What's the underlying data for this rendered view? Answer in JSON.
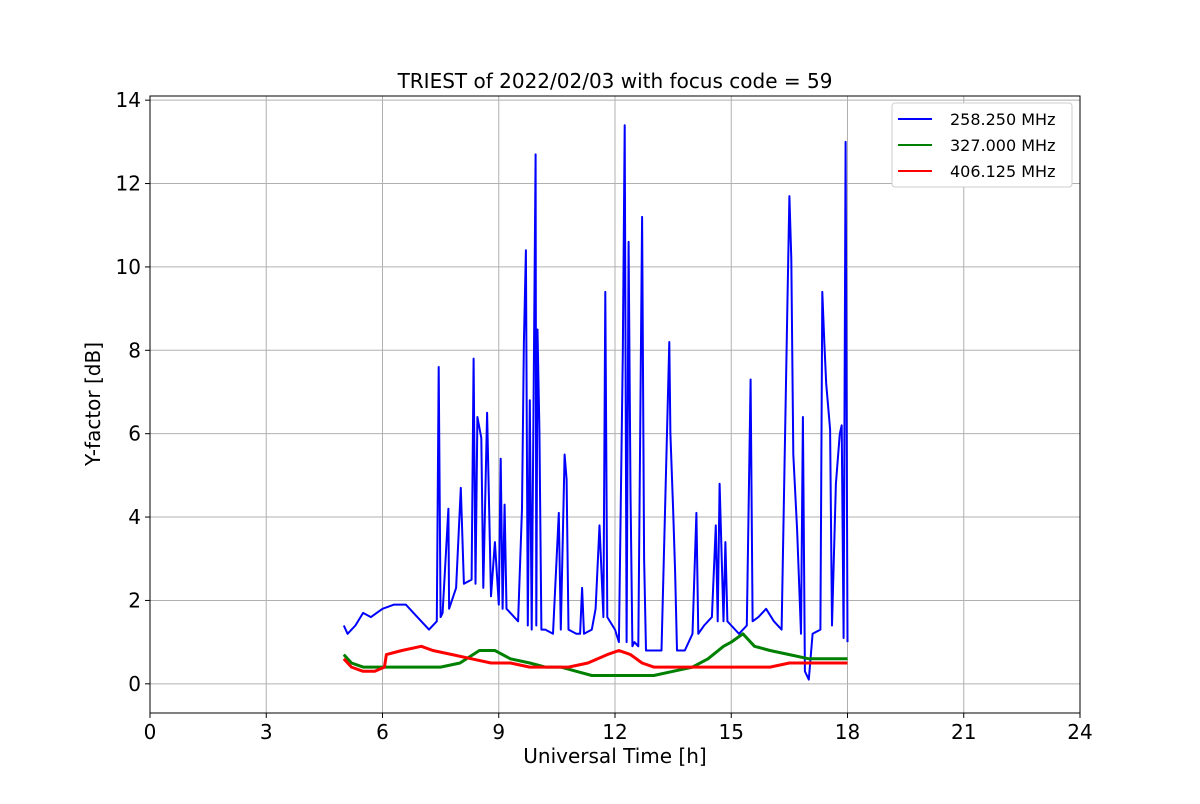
{
  "chart_data": {
    "type": "line",
    "title": "TRIEST of 2022/02/03 with focus code = 59",
    "xlabel": "Universal Time [h]",
    "ylabel": "Y-factor [dB]",
    "xlim": [
      0,
      24
    ],
    "ylim": [
      -0.7,
      14.1
    ],
    "xticks": [
      0,
      3,
      6,
      9,
      12,
      15,
      18,
      21,
      24
    ],
    "yticks": [
      0,
      2,
      4,
      6,
      8,
      10,
      12,
      14
    ],
    "grid": true,
    "legend_position": "top-right",
    "series": [
      {
        "name": "258.250 MHz",
        "color": "#0000ff",
        "x": [
          5.0,
          5.1,
          5.3,
          5.5,
          5.7,
          6.0,
          6.3,
          6.6,
          6.8,
          7.0,
          7.2,
          7.4,
          7.45,
          7.5,
          7.55,
          7.7,
          7.72,
          7.9,
          8.02,
          8.1,
          8.3,
          8.35,
          8.4,
          8.45,
          8.55,
          8.6,
          8.7,
          8.8,
          8.9,
          9.0,
          9.05,
          9.1,
          9.15,
          9.2,
          9.3,
          9.5,
          9.6,
          9.65,
          9.7,
          9.75,
          9.8,
          9.85,
          9.95,
          9.97,
          10.0,
          10.05,
          10.1,
          10.2,
          10.4,
          10.55,
          10.6,
          10.7,
          10.75,
          10.8,
          11.0,
          11.1,
          11.15,
          11.2,
          11.4,
          11.5,
          11.6,
          11.7,
          11.75,
          11.8,
          12.0,
          12.1,
          12.2,
          12.25,
          12.3,
          12.35,
          12.4,
          12.45,
          12.5,
          12.6,
          12.7,
          12.75,
          12.8,
          13.0,
          13.2,
          13.4,
          13.43,
          13.5,
          13.55,
          13.6,
          13.8,
          14.0,
          14.1,
          14.15,
          14.3,
          14.5,
          14.6,
          14.65,
          14.7,
          14.8,
          14.85,
          14.9,
          15.0,
          15.2,
          15.4,
          15.5,
          15.55,
          15.7,
          15.9,
          16.1,
          16.3,
          16.45,
          16.5,
          16.55,
          16.6,
          16.7,
          16.8,
          16.85,
          16.9,
          17.0,
          17.1,
          17.3,
          17.35,
          17.4,
          17.45,
          17.55,
          17.6,
          17.7,
          17.8,
          17.85,
          17.9,
          17.95,
          18.0
        ],
        "y": [
          1.4,
          1.2,
          1.4,
          1.7,
          1.6,
          1.8,
          1.9,
          1.9,
          1.7,
          1.5,
          1.3,
          1.5,
          7.6,
          1.6,
          1.7,
          4.2,
          1.8,
          2.3,
          4.7,
          2.4,
          2.5,
          7.8,
          2.4,
          6.4,
          5.9,
          2.3,
          6.5,
          2.1,
          3.4,
          1.9,
          5.4,
          1.8,
          4.3,
          1.8,
          1.7,
          1.5,
          4.2,
          8.2,
          10.4,
          1.4,
          6.8,
          1.3,
          12.7,
          1.4,
          8.5,
          6.1,
          1.3,
          1.3,
          1.2,
          4.1,
          1.3,
          5.5,
          4.9,
          1.3,
          1.2,
          1.2,
          2.3,
          1.2,
          1.3,
          1.8,
          3.8,
          1.6,
          9.4,
          1.6,
          1.3,
          1.0,
          7.9,
          13.4,
          1.0,
          10.6,
          4.6,
          0.9,
          1.0,
          0.9,
          11.2,
          3.0,
          0.8,
          0.8,
          0.8,
          8.2,
          6.0,
          4.2,
          2.7,
          0.8,
          0.8,
          1.2,
          4.1,
          1.2,
          1.4,
          1.6,
          3.8,
          1.5,
          4.8,
          1.5,
          3.4,
          1.5,
          1.4,
          1.2,
          1.4,
          7.3,
          1.5,
          1.6,
          1.8,
          1.5,
          1.3,
          9.1,
          11.7,
          10.2,
          5.5,
          3.7,
          1.2,
          6.4,
          0.3,
          0.1,
          1.2,
          1.3,
          9.4,
          8.2,
          7.2,
          6.1,
          1.4,
          4.8,
          6.0,
          6.2,
          1.1,
          13.0,
          1.0
        ]
      },
      {
        "name": "327.000 MHz",
        "color": "#008000",
        "x": [
          5.0,
          5.2,
          5.5,
          6.0,
          6.5,
          7.0,
          7.5,
          8.0,
          8.5,
          8.9,
          9.3,
          9.8,
          10.2,
          10.6,
          11.0,
          11.4,
          11.8,
          12.2,
          12.6,
          13.0,
          13.5,
          14.0,
          14.4,
          14.8,
          15.0,
          15.3,
          15.6,
          16.0,
          16.5,
          17.0,
          17.5,
          18.0
        ],
        "y": [
          0.7,
          0.5,
          0.4,
          0.4,
          0.4,
          0.4,
          0.4,
          0.5,
          0.8,
          0.8,
          0.6,
          0.5,
          0.4,
          0.4,
          0.3,
          0.2,
          0.2,
          0.2,
          0.2,
          0.2,
          0.3,
          0.4,
          0.6,
          0.9,
          1.0,
          1.2,
          0.9,
          0.8,
          0.7,
          0.6,
          0.6,
          0.6
        ]
      },
      {
        "name": "406.125 MHz",
        "color": "#ff0000",
        "x": [
          5.0,
          5.2,
          5.5,
          5.8,
          6.05,
          6.1,
          6.5,
          7.0,
          7.3,
          7.8,
          8.3,
          8.8,
          9.3,
          9.8,
          10.3,
          10.8,
          11.3,
          11.8,
          12.1,
          12.4,
          12.7,
          13.0,
          13.5,
          14.0,
          14.5,
          15.0,
          15.5,
          16.0,
          16.5,
          17.0,
          17.5,
          18.0
        ],
        "y": [
          0.6,
          0.4,
          0.3,
          0.3,
          0.4,
          0.7,
          0.8,
          0.9,
          0.8,
          0.7,
          0.6,
          0.5,
          0.5,
          0.4,
          0.4,
          0.4,
          0.5,
          0.7,
          0.8,
          0.7,
          0.5,
          0.4,
          0.4,
          0.4,
          0.4,
          0.4,
          0.4,
          0.4,
          0.5,
          0.5,
          0.5,
          0.5
        ]
      }
    ]
  }
}
